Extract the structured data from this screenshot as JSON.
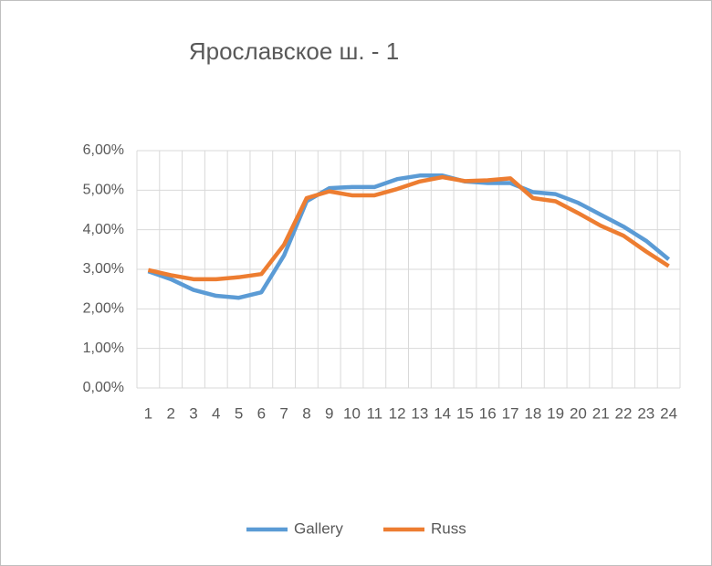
{
  "chart_data": {
    "type": "line",
    "title": "Ярославское ш. - 1",
    "categories": [
      "1",
      "2",
      "3",
      "4",
      "5",
      "6",
      "7",
      "8",
      "9",
      "10",
      "11",
      "12",
      "13",
      "14",
      "15",
      "16",
      "17",
      "18",
      "19",
      "20",
      "21",
      "22",
      "23",
      "24"
    ],
    "series": [
      {
        "name": "Gallery",
        "color": "#5b9bd5",
        "values": [
          2.95,
          2.75,
          2.48,
          2.33,
          2.28,
          2.42,
          3.35,
          4.72,
          5.05,
          5.08,
          5.08,
          5.28,
          5.37,
          5.37,
          5.22,
          5.18,
          5.18,
          4.95,
          4.9,
          4.68,
          4.38,
          4.08,
          3.72,
          3.25
        ]
      },
      {
        "name": "Russ",
        "color": "#ed7d31",
        "values": [
          2.98,
          2.85,
          2.75,
          2.75,
          2.8,
          2.88,
          3.62,
          4.8,
          4.97,
          4.87,
          4.87,
          5.03,
          5.22,
          5.33,
          5.23,
          5.25,
          5.3,
          4.8,
          4.72,
          4.42,
          4.1,
          3.85,
          3.45,
          3.08
        ]
      }
    ],
    "ylim": [
      0,
      6
    ],
    "yticks": [
      {
        "value": 0,
        "label": "0,00%"
      },
      {
        "value": 1,
        "label": "1,00%"
      },
      {
        "value": 2,
        "label": "2,00%"
      },
      {
        "value": 3,
        "label": "3,00%"
      },
      {
        "value": 4,
        "label": "4,00%"
      },
      {
        "value": 5,
        "label": "5,00%"
      },
      {
        "value": 6,
        "label": "6,00%"
      }
    ],
    "grid": true,
    "legend": "bottom"
  }
}
